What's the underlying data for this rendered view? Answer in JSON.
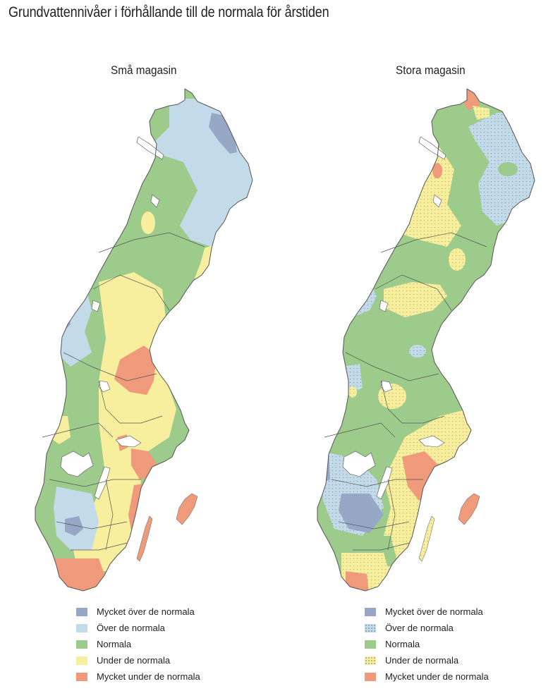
{
  "title": "Grundvattennivåer i förhållande till de normala för årstiden",
  "colors": {
    "mycket_over": "#97a8c7",
    "over": "#c3dbe8",
    "normala": "#9ccb8c",
    "under": "#f7ef9e",
    "mycket_under": "#ef9a7a",
    "lakes": "#ffffff",
    "borders": "#555555"
  },
  "maps": [
    {
      "title": "Små magasin",
      "legend": [
        {
          "label": "Mycket över de normala",
          "color": "#97a8c7",
          "pattern": "solid"
        },
        {
          "label": "Över de normala",
          "color": "#c3dbe8",
          "pattern": "solid"
        },
        {
          "label": "Normala",
          "color": "#9ccb8c",
          "pattern": "solid"
        },
        {
          "label": "Under de normala",
          "color": "#f7ef9e",
          "pattern": "solid"
        },
        {
          "label": "Mycket under de normala",
          "color": "#ef9a7a",
          "pattern": "solid"
        }
      ]
    },
    {
      "title": "Stora magasin",
      "legend": [
        {
          "label": "Mycket över de normala",
          "color": "#97a8c7",
          "pattern": "solid"
        },
        {
          "label": "Över de normala",
          "color": "#c3dbe8",
          "pattern": "dotted"
        },
        {
          "label": "Normala",
          "color": "#9ccb8c",
          "pattern": "solid"
        },
        {
          "label": "Under de normala",
          "color": "#f7ef9e",
          "pattern": "dotted"
        },
        {
          "label": "Mycket under de normala",
          "color": "#ef9a7a",
          "pattern": "solid"
        }
      ]
    }
  ]
}
